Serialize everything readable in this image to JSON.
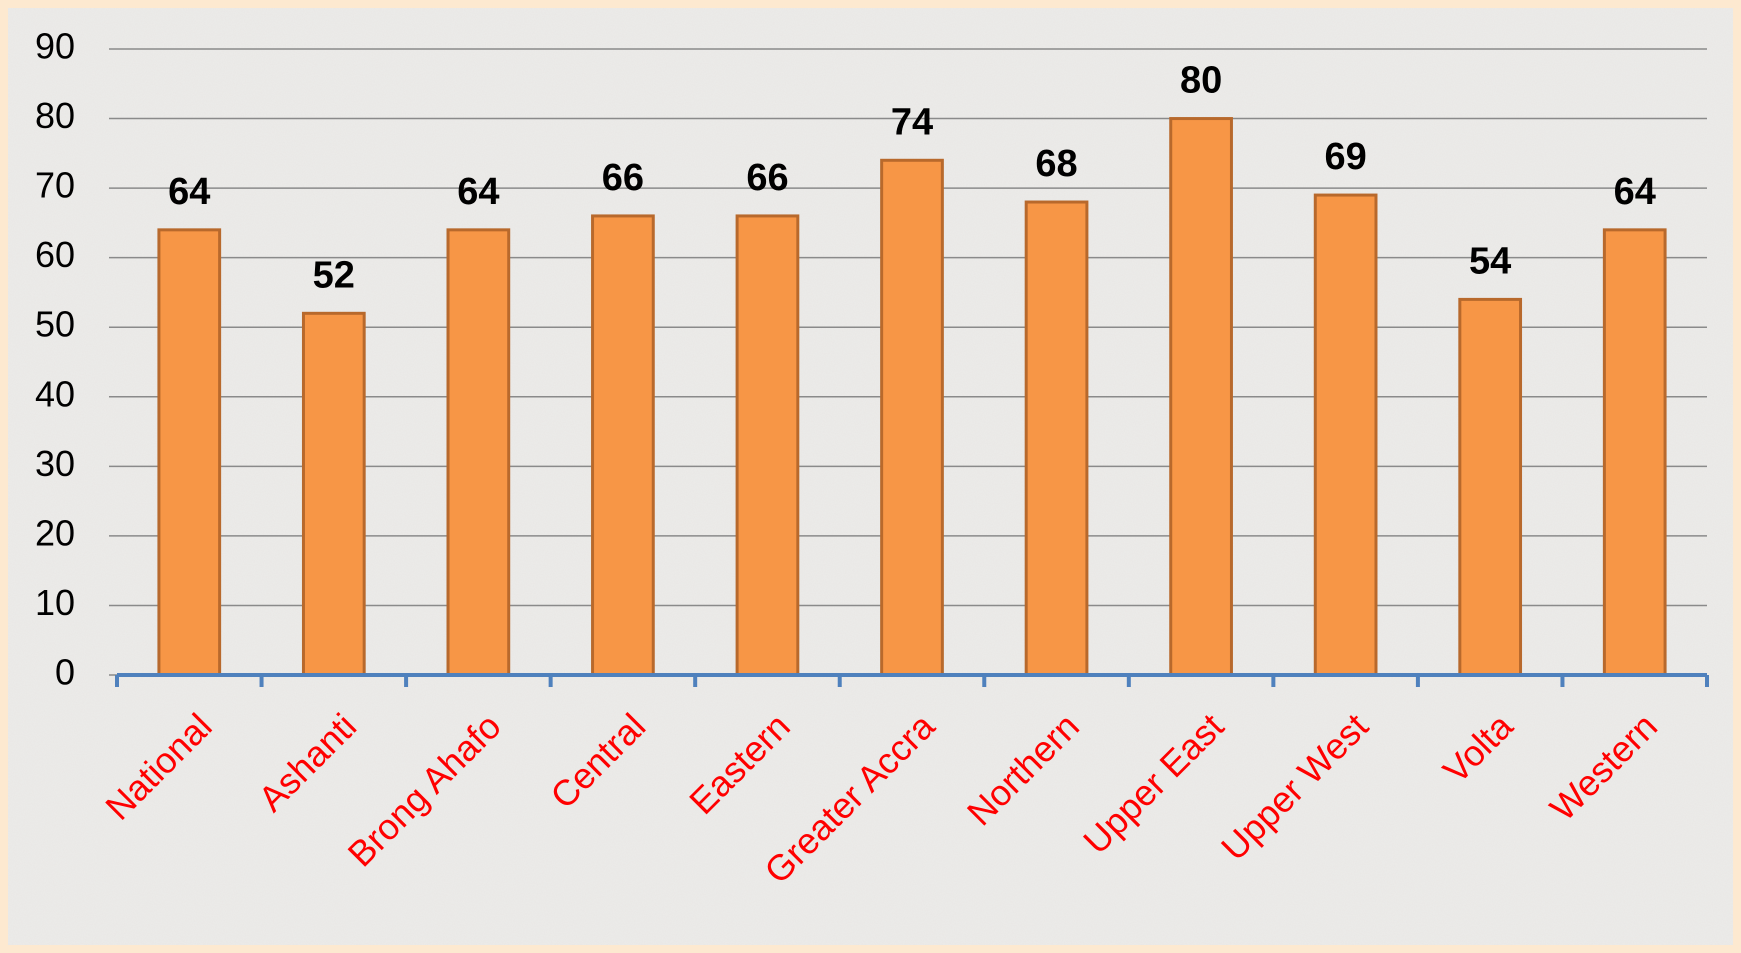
{
  "chart_data": {
    "type": "bar",
    "categories": [
      "National",
      "Ashanti",
      "Brong Ahafo",
      "Central",
      "Eastern",
      "Greater Accra",
      "Northern",
      "Upper East",
      "Upper West",
      "Volta",
      "Western"
    ],
    "values": [
      64,
      52,
      64,
      66,
      66,
      74,
      68,
      80,
      69,
      54,
      64
    ],
    "color": "#f79646",
    "ylim": [
      0,
      90
    ],
    "yticks": [
      0,
      10,
      20,
      30,
      40,
      50,
      60,
      70,
      80,
      90
    ],
    "grid": true
  }
}
